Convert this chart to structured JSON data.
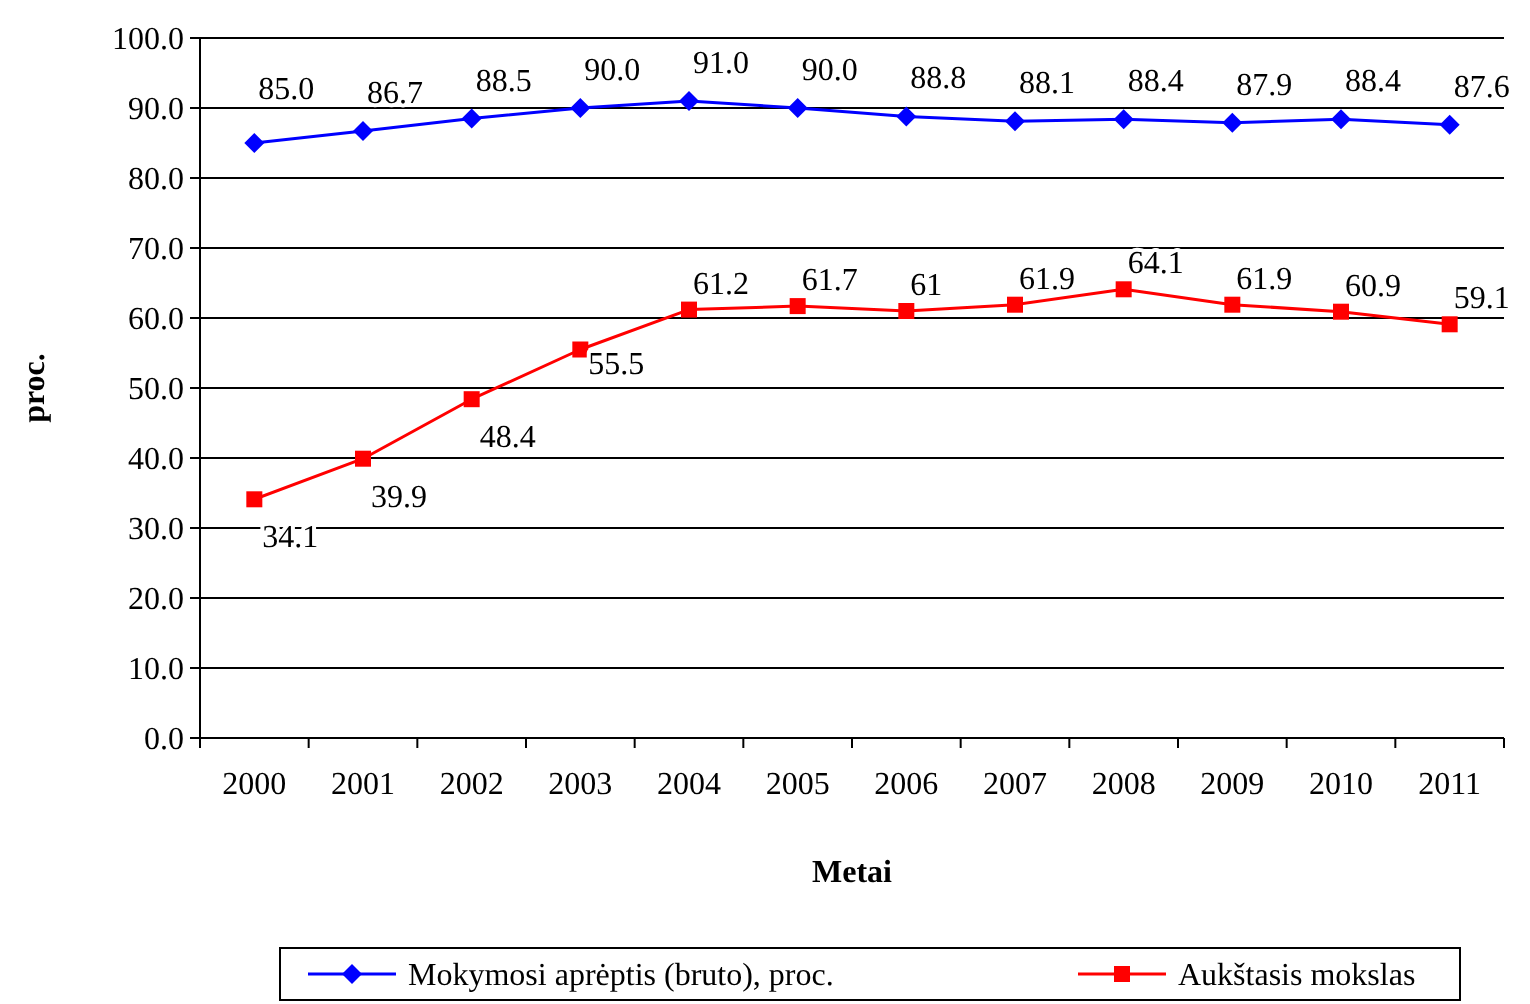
{
  "chart_data": {
    "type": "line",
    "xlabel": "Metai",
    "ylabel": "proc.",
    "categories": [
      "2000",
      "2001",
      "2002",
      "2003",
      "2004",
      "2005",
      "2006",
      "2007",
      "2008",
      "2009",
      "2010",
      "2011"
    ],
    "series": [
      {
        "name": "Mokymosi aprėptis (bruto), proc.",
        "color": "#0000ff",
        "marker": "diamond",
        "values": [
          85.0,
          86.7,
          88.5,
          90.0,
          91.0,
          90.0,
          88.8,
          88.1,
          88.4,
          87.9,
          88.4,
          87.6
        ],
        "value_labels": [
          "85.0",
          "86.7",
          "88.5",
          "90.0",
          "91.0",
          "90.0",
          "88.8",
          "88.1",
          "88.4",
          "87.9",
          "88.4",
          "87.6"
        ]
      },
      {
        "name": "Aukštasis mokslas",
        "color": "#ff0000",
        "marker": "square",
        "values": [
          34.1,
          39.9,
          48.4,
          55.5,
          61.2,
          61.7,
          61,
          61.9,
          64.1,
          61.9,
          60.9,
          59.1
        ],
        "value_labels": [
          "34.1",
          "39.9",
          "48.4",
          "55.5",
          "61.2",
          "61.7",
          "61",
          "61.9",
          "64.1",
          "61.9",
          "60.9",
          "59.1"
        ]
      }
    ],
    "ylim": [
      0,
      100
    ],
    "yticks": [
      {
        "value": 0,
        "label": "0.0"
      },
      {
        "value": 10,
        "label": "10.0"
      },
      {
        "value": 20,
        "label": "20.0"
      },
      {
        "value": 30,
        "label": "30.0"
      },
      {
        "value": 40,
        "label": "40.0"
      },
      {
        "value": 50,
        "label": "50.0"
      },
      {
        "value": 60,
        "label": "60.0"
      },
      {
        "value": 70,
        "label": "70.0"
      },
      {
        "value": 80,
        "label": "80.0"
      },
      {
        "value": 90,
        "label": "90.0"
      },
      {
        "value": 100,
        "label": "100.0"
      }
    ],
    "grid": "y",
    "legend": "bottom",
    "line_style": "solid"
  }
}
